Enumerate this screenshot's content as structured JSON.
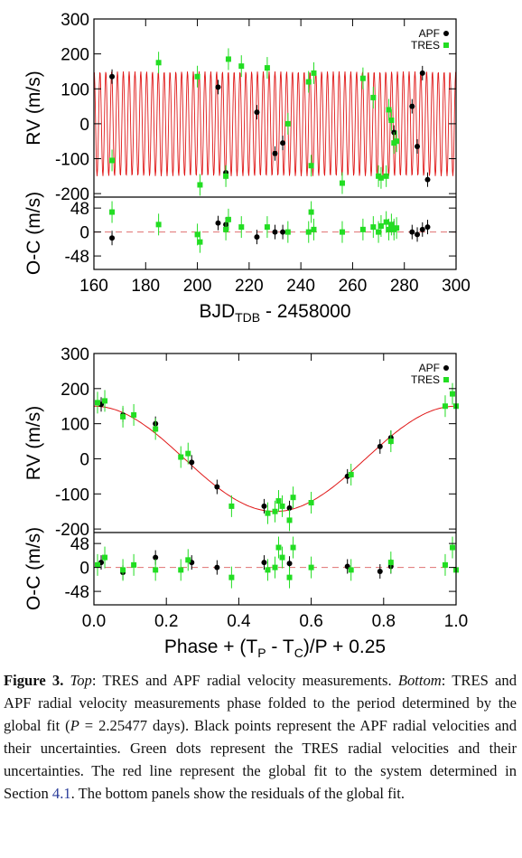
{
  "chart_data": [
    {
      "type": "scatter",
      "panel": "top",
      "ylabel": "RV (m/s)",
      "resid_ylabel": "O-C (m/s)",
      "xlabel_main": "BJD",
      "xlabel_sub": "TDB",
      "xlabel_tail": " - 2458000",
      "xlim": [
        160,
        300
      ],
      "ylim": [
        -210,
        300
      ],
      "resid_ylim": [
        -75,
        70
      ],
      "xticks": [
        "160",
        "180",
        "200",
        "220",
        "240",
        "260",
        "280",
        "300"
      ],
      "yticks": [
        "-200",
        "-100",
        "0",
        "100",
        "200",
        "300"
      ],
      "resid_yticks": [
        "-48",
        "0",
        "48"
      ],
      "legend": [
        "APF",
        "TRES"
      ],
      "legend_position": "top-right",
      "model": {
        "color": "#e01818",
        "amplitude": 150,
        "period_days": 2.25477
      },
      "colors": {
        "APF": "#000000",
        "TRES": "#22dd22",
        "model": "#e01818",
        "zero_line": "#e07070"
      },
      "series": [
        {
          "name": "APF",
          "x": [
            167,
            208,
            211,
            223,
            230,
            233,
            276,
            283,
            285,
            287,
            289
          ],
          "y": [
            135,
            105,
            -140,
            33,
            -85,
            -55,
            -25,
            50,
            -65,
            145,
            -160
          ],
          "resid": [
            -12,
            18,
            15,
            -10,
            0,
            0,
            8,
            0,
            -5,
            5,
            10
          ]
        },
        {
          "name": "TRES",
          "x": [
            167,
            185,
            200,
            201,
            211,
            212,
            217,
            227,
            235,
            243,
            244,
            245,
            256,
            264,
            268,
            270,
            271,
            273,
            274,
            275,
            276,
            277
          ],
          "y": [
            -105,
            175,
            135,
            -175,
            -150,
            185,
            165,
            160,
            0,
            120,
            -120,
            145,
            -170,
            130,
            75,
            -150,
            -155,
            -150,
            40,
            10,
            -55,
            -50
          ],
          "resid": [
            40,
            15,
            -5,
            -20,
            5,
            25,
            10,
            10,
            0,
            0,
            40,
            5,
            0,
            5,
            10,
            0,
            12,
            20,
            5,
            15,
            5,
            8
          ]
        }
      ]
    },
    {
      "type": "scatter",
      "panel": "bottom",
      "ylabel": "RV (m/s)",
      "resid_ylabel": "O-C (m/s)",
      "xlabel": "Phase + (T",
      "xlabel_sub1": "P",
      "xlabel_mid": " - T",
      "xlabel_sub2": "C",
      "xlabel_tail": ")/P + 0.25",
      "xlim": [
        0.0,
        1.0
      ],
      "ylim": [
        -210,
        300
      ],
      "resid_ylim": [
        -75,
        70
      ],
      "xticks": [
        "0.0",
        "0.2",
        "0.4",
        "0.6",
        "0.8",
        "1.0"
      ],
      "yticks": [
        "-200",
        "-100",
        "0",
        "100",
        "200",
        "300"
      ],
      "resid_yticks": [
        "-48",
        "0",
        "48"
      ],
      "legend": [
        "APF",
        "TRES"
      ],
      "legend_position": "top-right",
      "model": {
        "type": "cosine",
        "amplitude": 150,
        "peak_phase": 0.0
      },
      "colors": {
        "APF": "#000000",
        "TRES": "#22dd22",
        "model": "#e01818",
        "zero_line": "#e07070"
      },
      "series": [
        {
          "name": "APF",
          "x": [
            0.02,
            0.08,
            0.17,
            0.27,
            0.34,
            0.47,
            0.54,
            0.7,
            0.79,
            0.82
          ],
          "y": [
            155,
            125,
            100,
            -10,
            -80,
            -135,
            -140,
            -50,
            35,
            60
          ],
          "resid": [
            10,
            -10,
            20,
            10,
            0,
            10,
            8,
            2,
            -8,
            2
          ]
        },
        {
          "name": "TRES",
          "x": [
            0.01,
            0.03,
            0.08,
            0.11,
            0.17,
            0.24,
            0.26,
            0.38,
            0.48,
            0.5,
            0.51,
            0.52,
            0.54,
            0.55,
            0.6,
            0.71,
            0.82,
            0.97,
            0.99,
            1.0
          ],
          "y": [
            160,
            165,
            120,
            125,
            85,
            5,
            15,
            -135,
            -155,
            -150,
            -120,
            -135,
            -175,
            -110,
            -125,
            -45,
            50,
            150,
            185,
            150
          ],
          "resid": [
            5,
            20,
            -5,
            5,
            -5,
            -5,
            15,
            -20,
            -5,
            0,
            40,
            20,
            -20,
            40,
            0,
            -5,
            10,
            5,
            40,
            -5
          ]
        }
      ]
    }
  ],
  "caption": {
    "label": "Figure 3.",
    "top_word": "Top",
    "text1": ": TRES and APF radial velocity measurements.",
    "bottom_word": "Bottom",
    "text2": ": TRES and APF radial velocity measurements phase folded to the period determined by the global fit (",
    "p_symbol": "P",
    "text3": " = 2.25477 days).  Black points represent the APF radial velocities and their uncertainties. Green dots represent the TRES radial velocities and their uncertainties.  The red line represent the global fit to the system determined in Section ",
    "section_ref": "4.1",
    "text4": ". The bottom panels show the residuals of the global fit."
  }
}
